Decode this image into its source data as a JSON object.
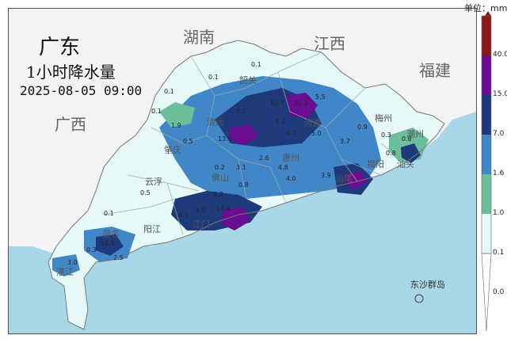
{
  "title": "广东",
  "subtitle": "1小时降水量",
  "datetime": "2025-08-05 09:00",
  "regions": [
    "湖南",
    "江西",
    "福建",
    "广西"
  ],
  "cities": [
    "韶关",
    "梅州",
    "清远",
    "河源",
    "肇庆",
    "惠州",
    "云浮",
    "佛山",
    "潮州",
    "揭阳",
    "汕头",
    "汕尾",
    "阳江",
    "江门",
    "茂名",
    "湛江"
  ],
  "island_label": "东沙群岛",
  "values": [
    "0.1",
    "0.1",
    "0.1",
    "0.1",
    "0.2",
    "0.5",
    "1.9",
    "10.7",
    "5.5",
    "31.2",
    "13.0",
    "7.2",
    "4.7",
    "5.0",
    "3.7",
    "0.9",
    "0.3",
    "0.8",
    "0.6",
    "2.6",
    "4.8",
    "4.0",
    "3.9",
    "3.1",
    "0.8",
    "0.5",
    "0.2",
    "6.0",
    "14.4",
    "6.2",
    "3.0",
    "16.5",
    "0.1",
    "0.5",
    "2.5",
    "0.3"
  ],
  "legend": {
    "unit": "单位：mm",
    "ticks": [
      "40.0",
      "15.0",
      "7.0",
      "1.6",
      "1.0",
      "0.1",
      "0.0"
    ],
    "colors": [
      "#8b1a1a",
      "#6a0d91",
      "#1f3a7a",
      "#4187c8",
      "#6bbf9a",
      "#e6f8f8",
      "#ffffff"
    ]
  }
}
